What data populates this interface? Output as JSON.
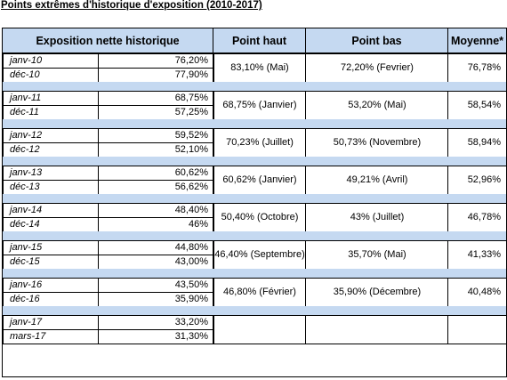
{
  "title": "Points extrêmes d'historique d'exposition (2010-2017)",
  "headers": {
    "exposition": "Exposition nette historique",
    "haut": "Point haut",
    "bas": "Point bas",
    "moyenne": "Moyenne*"
  },
  "groups": [
    {
      "rows": [
        {
          "label": "janv-10",
          "value": "76,20%"
        },
        {
          "label": "déc-10",
          "value": "77,90%"
        }
      ],
      "haut": "83,10% (Mai)",
      "bas": "72,20% (Fevrier)",
      "moyenne": "76,78%"
    },
    {
      "rows": [
        {
          "label": "janv-11",
          "value": "68,75%"
        },
        {
          "label": "déc-11",
          "value": "57,25%"
        }
      ],
      "haut": "68,75% (Janvier)",
      "bas": "53,20% (Mai)",
      "moyenne": "58,54%"
    },
    {
      "rows": [
        {
          "label": "janv-12",
          "value": "59,52%"
        },
        {
          "label": "déc-12",
          "value": "52,10%"
        }
      ],
      "haut": "70,23% (Juillet)",
      "bas": "50,73% (Novembre)",
      "moyenne": "58,94%"
    },
    {
      "rows": [
        {
          "label": "janv-13",
          "value": "60,62%"
        },
        {
          "label": "déc-13",
          "value": "56,62%"
        }
      ],
      "haut": "60,62% (Janvier)",
      "bas": "49,21% (Avril)",
      "moyenne": "52,96%"
    },
    {
      "rows": [
        {
          "label": "janv-14",
          "value": "48,40%"
        },
        {
          "label": "déc-14",
          "value": "46%"
        }
      ],
      "haut": "50,40% (Octobre)",
      "bas": "43% (Juillet)",
      "moyenne": "46,78%"
    },
    {
      "rows": [
        {
          "label": "janv-15",
          "value": "44,80%"
        },
        {
          "label": "déc-15",
          "value": "43,00%"
        }
      ],
      "haut": "46,40% (Septembre)",
      "bas": "35,70% (Mai)",
      "moyenne": "41,33%"
    },
    {
      "rows": [
        {
          "label": "janv-16",
          "value": "43,50%"
        },
        {
          "label": "déc-16",
          "value": "35,90%"
        }
      ],
      "haut": "46,80% (Février)",
      "bas": "35,90% (Décembre)",
      "moyenne": "40,48%"
    },
    {
      "rows": [
        {
          "label": "janv-17",
          "value": "33,20%"
        },
        {
          "label": "mars-17",
          "value": "31,30%"
        }
      ],
      "haut": "",
      "bas": "",
      "moyenne": ""
    }
  ]
}
